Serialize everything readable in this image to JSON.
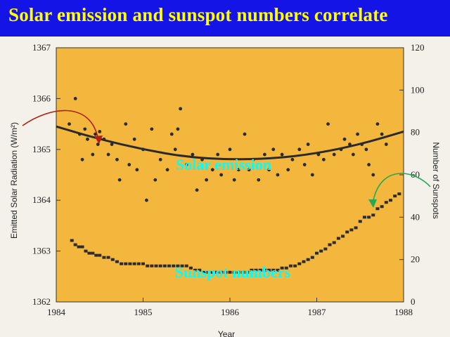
{
  "slide": {
    "title": "Solar emission and sunspot numbers correlate",
    "title_color": "#ffff00",
    "background_color": "#1414e6"
  },
  "chart_data": {
    "type": "scatter",
    "title": "",
    "xlabel": "Year",
    "ylabel_left": "Emitted Solar Radiation (W/m²)",
    "ylabel_right": "Number of Sunspots",
    "x_ticks": [
      "1984",
      "1985",
      "1986",
      "1987",
      "1988"
    ],
    "y_left_ticks": [
      "1362",
      "1363",
      "1364",
      "1365",
      "1366",
      "1367"
    ],
    "y_right_ticks": [
      "0",
      "20",
      "40",
      "60",
      "80",
      "100",
      "120"
    ],
    "xlim": [
      1984,
      1988
    ],
    "ylim_left": [
      1362,
      1367
    ],
    "ylim_right": [
      0,
      120
    ],
    "plot_background": "#f2b73c",
    "annotations": {
      "solar_label": "Solar emission",
      "sunspot_label": "Sunspot numbers",
      "label_color": "#00ffff",
      "solar_arrow_color": "#b02010",
      "sunspot_arrow_color": "#22aa55"
    },
    "series": [
      {
        "name": "Solar emission",
        "axis": "left",
        "points": [
          [
            1984.15,
            1365.5
          ],
          [
            1984.22,
            1366.0
          ],
          [
            1984.27,
            1365.3
          ],
          [
            1984.3,
            1364.8
          ],
          [
            1984.33,
            1365.4
          ],
          [
            1984.36,
            1365.2
          ],
          [
            1984.42,
            1364.9
          ],
          [
            1984.45,
            1365.3
          ],
          [
            1984.48,
            1365.1
          ],
          [
            1984.5,
            1365.35
          ],
          [
            1984.55,
            1365.2
          ],
          [
            1984.6,
            1364.9
          ],
          [
            1984.64,
            1365.1
          ],
          [
            1984.7,
            1364.8
          ],
          [
            1984.73,
            1364.4
          ],
          [
            1984.8,
            1365.5
          ],
          [
            1984.84,
            1364.7
          ],
          [
            1984.9,
            1365.2
          ],
          [
            1984.93,
            1364.6
          ],
          [
            1985.0,
            1365.0
          ],
          [
            1985.04,
            1364.0
          ],
          [
            1985.1,
            1365.4
          ],
          [
            1985.14,
            1364.4
          ],
          [
            1985.2,
            1364.8
          ],
          [
            1985.28,
            1364.6
          ],
          [
            1985.33,
            1365.3
          ],
          [
            1985.37,
            1365.0
          ],
          [
            1985.4,
            1365.4
          ],
          [
            1985.43,
            1365.8
          ],
          [
            1985.5,
            1364.7
          ],
          [
            1985.57,
            1364.9
          ],
          [
            1985.62,
            1364.2
          ],
          [
            1985.68,
            1364.8
          ],
          [
            1985.73,
            1364.4
          ],
          [
            1985.8,
            1364.6
          ],
          [
            1985.86,
            1364.9
          ],
          [
            1985.9,
            1364.5
          ],
          [
            1986.0,
            1365.0
          ],
          [
            1986.05,
            1364.4
          ],
          [
            1986.1,
            1364.6
          ],
          [
            1986.17,
            1365.3
          ],
          [
            1986.22,
            1364.6
          ],
          [
            1986.27,
            1364.8
          ],
          [
            1986.33,
            1364.4
          ],
          [
            1986.4,
            1364.9
          ],
          [
            1986.45,
            1364.6
          ],
          [
            1986.5,
            1365.0
          ],
          [
            1986.55,
            1364.5
          ],
          [
            1986.6,
            1364.9
          ],
          [
            1986.67,
            1364.6
          ],
          [
            1986.72,
            1364.8
          ],
          [
            1986.8,
            1365.0
          ],
          [
            1986.86,
            1364.7
          ],
          [
            1986.9,
            1365.1
          ],
          [
            1986.95,
            1364.5
          ],
          [
            1987.02,
            1364.9
          ],
          [
            1987.08,
            1364.8
          ],
          [
            1987.13,
            1365.5
          ],
          [
            1987.2,
            1364.9
          ],
          [
            1987.28,
            1365.0
          ],
          [
            1987.32,
            1365.2
          ],
          [
            1987.38,
            1365.1
          ],
          [
            1987.42,
            1364.9
          ],
          [
            1987.47,
            1365.3
          ],
          [
            1987.52,
            1365.1
          ],
          [
            1987.57,
            1365.0
          ],
          [
            1987.6,
            1364.7
          ],
          [
            1987.65,
            1364.5
          ],
          [
            1987.7,
            1365.5
          ],
          [
            1987.75,
            1365.3
          ],
          [
            1987.8,
            1365.1
          ]
        ]
      },
      {
        "name": "Sunspot numbers",
        "axis": "right",
        "points": [
          [
            1984.18,
            29
          ],
          [
            1984.22,
            27
          ],
          [
            1984.26,
            26
          ],
          [
            1984.3,
            26
          ],
          [
            1984.34,
            24
          ],
          [
            1984.38,
            23
          ],
          [
            1984.42,
            23
          ],
          [
            1984.46,
            22
          ],
          [
            1984.5,
            22
          ],
          [
            1984.55,
            21
          ],
          [
            1984.6,
            21
          ],
          [
            1984.65,
            20
          ],
          [
            1984.7,
            19
          ],
          [
            1984.75,
            18
          ],
          [
            1984.8,
            18
          ],
          [
            1984.85,
            18
          ],
          [
            1984.9,
            18
          ],
          [
            1984.95,
            18
          ],
          [
            1985.0,
            18
          ],
          [
            1985.05,
            17
          ],
          [
            1985.1,
            17
          ],
          [
            1985.15,
            17
          ],
          [
            1985.2,
            17
          ],
          [
            1985.25,
            17
          ],
          [
            1985.3,
            17
          ],
          [
            1985.35,
            17
          ],
          [
            1985.4,
            17
          ],
          [
            1985.45,
            17
          ],
          [
            1985.5,
            17
          ],
          [
            1985.55,
            16
          ],
          [
            1985.6,
            15
          ],
          [
            1985.65,
            15
          ],
          [
            1985.7,
            14
          ],
          [
            1985.75,
            14
          ],
          [
            1985.8,
            14
          ],
          [
            1985.85,
            14
          ],
          [
            1985.9,
            14
          ],
          [
            1985.95,
            14
          ],
          [
            1986.0,
            14
          ],
          [
            1986.05,
            14
          ],
          [
            1986.1,
            14
          ],
          [
            1986.15,
            14
          ],
          [
            1986.2,
            14
          ],
          [
            1986.25,
            15
          ],
          [
            1986.3,
            15
          ],
          [
            1986.35,
            15
          ],
          [
            1986.4,
            15
          ],
          [
            1986.45,
            15
          ],
          [
            1986.5,
            15
          ],
          [
            1986.55,
            15
          ],
          [
            1986.6,
            16
          ],
          [
            1986.65,
            16
          ],
          [
            1986.7,
            17
          ],
          [
            1986.75,
            17
          ],
          [
            1986.8,
            18
          ],
          [
            1986.85,
            19
          ],
          [
            1986.9,
            20
          ],
          [
            1986.95,
            21
          ],
          [
            1987.0,
            23
          ],
          [
            1987.05,
            24
          ],
          [
            1987.1,
            25
          ],
          [
            1987.15,
            27
          ],
          [
            1987.2,
            28
          ],
          [
            1987.25,
            30
          ],
          [
            1987.3,
            31
          ],
          [
            1987.35,
            33
          ],
          [
            1987.4,
            34
          ],
          [
            1987.45,
            35
          ],
          [
            1987.5,
            38
          ],
          [
            1987.55,
            40
          ],
          [
            1987.6,
            40
          ],
          [
            1987.65,
            41
          ],
          [
            1987.7,
            44
          ],
          [
            1987.75,
            45
          ],
          [
            1987.8,
            47
          ],
          [
            1987.85,
            48
          ],
          [
            1987.9,
            50
          ],
          [
            1987.95,
            51
          ]
        ]
      },
      {
        "name": "Solar emission trend",
        "axis": "left",
        "line_points": [
          [
            1984.0,
            1365.45
          ],
          [
            1984.5,
            1365.2
          ],
          [
            1985.0,
            1365.0
          ],
          [
            1985.5,
            1364.85
          ],
          [
            1986.0,
            1364.8
          ],
          [
            1986.5,
            1364.82
          ],
          [
            1987.0,
            1364.92
          ],
          [
            1987.5,
            1365.1
          ],
          [
            1988.0,
            1365.35
          ]
        ]
      }
    ]
  }
}
